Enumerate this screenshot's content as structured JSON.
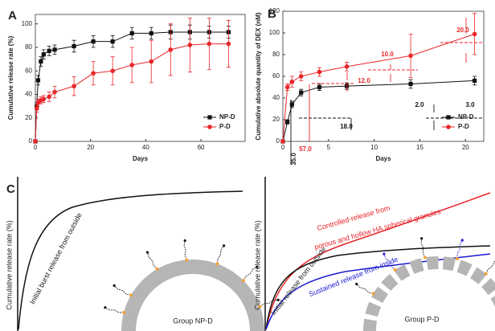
{
  "chart_data": [
    {
      "type": "line",
      "panel": "A",
      "x_label": "Days",
      "y_label": "Cumulative release rate (%)",
      "x": [
        0,
        0.5,
        1,
        2,
        3,
        5,
        7,
        14,
        21,
        28,
        35,
        42,
        49,
        56,
        63,
        70
      ],
      "series": [
        {
          "name": "NP-D",
          "color": "#111111",
          "marker": "square",
          "values": [
            0,
            30,
            52,
            68,
            74,
            77,
            78,
            81,
            85,
            85,
            92,
            92,
            93,
            93,
            93,
            93
          ],
          "errors": [
            0,
            3,
            4,
            4,
            4,
            4,
            4,
            5,
            5,
            5,
            5,
            5,
            6,
            6,
            5,
            5
          ]
        },
        {
          "name": "P-D",
          "color": "#e8262a",
          "marker": "circle",
          "values": [
            0,
            28,
            33,
            35,
            36,
            38,
            42,
            47,
            58,
            60,
            65,
            68,
            78,
            82,
            83,
            83
          ],
          "errors": [
            0,
            3,
            3,
            3,
            3,
            4,
            5,
            8,
            10,
            12,
            15,
            18,
            22,
            23,
            22,
            20
          ]
        }
      ],
      "xlim": [
        0,
        76
      ],
      "xticks": [
        0,
        20,
        40,
        60
      ],
      "ylim": [
        0,
        108
      ],
      "yticks": [
        0,
        20,
        40,
        60,
        80,
        100
      ],
      "grid": false,
      "legend": "lower right"
    },
    {
      "type": "line",
      "panel": "B",
      "x_label": "Days",
      "y_label": "Cumulative absolute quantity of DEX (nM)",
      "x": [
        0,
        0.5,
        1,
        2,
        4,
        7,
        14,
        21
      ],
      "series": [
        {
          "name": "NP-D",
          "color": "#111111",
          "marker": "square",
          "values": [
            0,
            18,
            34,
            45,
            50,
            51,
            53,
            56
          ],
          "errors": [
            0,
            2,
            3,
            3,
            3,
            3,
            4,
            4
          ]
        },
        {
          "name": "P-D",
          "color": "#e8262a",
          "marker": "circle",
          "values": [
            0,
            50,
            55,
            60,
            64,
            69,
            79,
            99
          ],
          "errors": [
            0,
            3,
            5,
            4,
            4,
            4,
            20,
            19
          ]
        }
      ],
      "xlim": [
        0,
        22
      ],
      "xticks": [
        0,
        5,
        10,
        15,
        20
      ],
      "ylim": [
        0,
        120
      ],
      "yticks": [
        0,
        20,
        40,
        60,
        80,
        100,
        120
      ],
      "annotations": [
        {
          "text": "35.0",
          "color": "#111111"
        },
        {
          "text": "57.0",
          "color": "#e8262a"
        },
        {
          "text": "18.0",
          "color": "#111111"
        },
        {
          "text": "12.0",
          "color": "#e8262a"
        },
        {
          "text": "10.0",
          "color": "#e8262a"
        },
        {
          "text": "2.0",
          "color": "#111111"
        },
        {
          "text": "20.0",
          "color": "#e8262a"
        },
        {
          "text": "3.0",
          "color": "#111111"
        }
      ],
      "grid": false,
      "legend": "lower right"
    }
  ],
  "panel_c": {
    "label": "C",
    "left": {
      "y_label": "Cumulative release rate (%)",
      "curve_label": "Initial burst release from outside",
      "group": "Group NP-D"
    },
    "right": {
      "y_label": "Cumulative release rate (%)",
      "controlled_line1": "Controlled-release from",
      "controlled_line2": "porous and hollow HA spherical granules",
      "initial_label": "Initial release from outside",
      "sustained_label": "Sustained release from inside",
      "group": "Group P-D"
    }
  }
}
